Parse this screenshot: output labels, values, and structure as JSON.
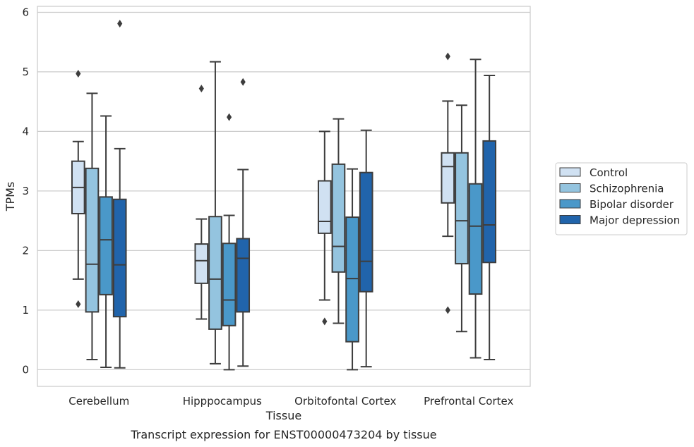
{
  "chart_data": {
    "type": "box",
    "xlabel": "Tissue",
    "ylabel": "TPMs",
    "caption": "Transcript expression for ENST00000473204 by tissue",
    "ylim": [
      -0.28,
      6.1
    ],
    "yticks": [
      0,
      1,
      2,
      3,
      4,
      5,
      6
    ],
    "grid": "horizontal",
    "legend_position": "right",
    "categories": [
      "Cerebellum",
      "Hipppocampus",
      "Orbitofontal Cortex",
      "Prefrontal Cortex"
    ],
    "series": [
      {
        "name": "Control",
        "color": "#d0e1f2",
        "boxes": [
          {
            "whislo": 1.52,
            "q1": 2.62,
            "med": 3.06,
            "q3": 3.5,
            "whishi": 3.83,
            "fliers": [
              4.97,
              1.1
            ]
          },
          {
            "whislo": 0.85,
            "q1": 1.45,
            "med": 1.83,
            "q3": 2.11,
            "whishi": 2.53,
            "fliers": [
              4.72
            ]
          },
          {
            "whislo": 1.17,
            "q1": 2.29,
            "med": 2.49,
            "q3": 3.17,
            "whishi": 4.0,
            "fliers": [
              0.81
            ]
          },
          {
            "whislo": 2.24,
            "q1": 2.8,
            "med": 3.41,
            "q3": 3.64,
            "whishi": 4.51,
            "fliers": [
              5.26,
              1.0
            ]
          }
        ]
      },
      {
        "name": "Schizophrenia",
        "color": "#94c4df",
        "boxes": [
          {
            "whislo": 0.17,
            "q1": 0.97,
            "med": 1.77,
            "q3": 3.38,
            "whishi": 4.64,
            "fliers": []
          },
          {
            "whislo": 0.1,
            "q1": 0.68,
            "med": 1.52,
            "q3": 2.57,
            "whishi": 5.17,
            "fliers": []
          },
          {
            "whislo": 0.78,
            "q1": 1.64,
            "med": 2.07,
            "q3": 3.45,
            "whishi": 4.21,
            "fliers": []
          },
          {
            "whislo": 0.64,
            "q1": 1.78,
            "med": 2.5,
            "q3": 3.64,
            "whishi": 4.44,
            "fliers": []
          }
        ]
      },
      {
        "name": "Bipolar disorder",
        "color": "#4a98c9",
        "boxes": [
          {
            "whislo": 0.04,
            "q1": 1.26,
            "med": 2.18,
            "q3": 2.9,
            "whishi": 4.26,
            "fliers": []
          },
          {
            "whislo": 0.0,
            "q1": 0.74,
            "med": 1.17,
            "q3": 2.12,
            "whishi": 2.59,
            "fliers": [
              4.24
            ]
          },
          {
            "whislo": 0.0,
            "q1": 0.47,
            "med": 1.53,
            "q3": 2.56,
            "whishi": 3.37,
            "fliers": []
          },
          {
            "whislo": 0.2,
            "q1": 1.27,
            "med": 2.41,
            "q3": 3.12,
            "whishi": 5.21,
            "fliers": []
          }
        ]
      },
      {
        "name": "Major depression",
        "color": "#2164ab",
        "boxes": [
          {
            "whislo": 0.03,
            "q1": 0.89,
            "med": 1.76,
            "q3": 2.86,
            "whishi": 3.71,
            "fliers": [
              5.81
            ]
          },
          {
            "whislo": 0.06,
            "q1": 0.97,
            "med": 1.87,
            "q3": 2.2,
            "whishi": 3.36,
            "fliers": [
              4.83
            ]
          },
          {
            "whislo": 0.05,
            "q1": 1.31,
            "med": 1.82,
            "q3": 3.31,
            "whishi": 4.02,
            "fliers": []
          },
          {
            "whislo": 0.17,
            "q1": 1.8,
            "med": 2.43,
            "q3": 3.84,
            "whishi": 4.94,
            "fliers": []
          }
        ]
      }
    ]
  }
}
